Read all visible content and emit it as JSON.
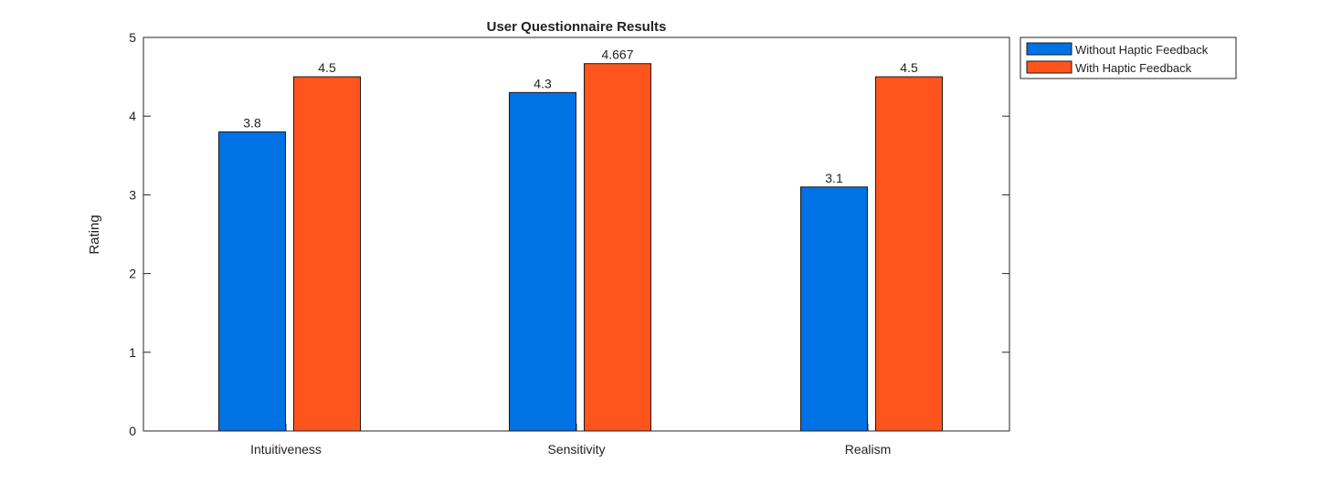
{
  "chart_data": {
    "type": "bar",
    "title": "User Questionnaire Results",
    "xlabel": "",
    "ylabel": "Rating",
    "ylim": [
      0,
      5
    ],
    "yticks": [
      0,
      1,
      2,
      3,
      4,
      5
    ],
    "categories": [
      "Intuitiveness",
      "Sensitivity",
      "Realism"
    ],
    "series": [
      {
        "name": "Without Haptic Feedback",
        "color": "#0072E3",
        "values": [
          3.8,
          4.3,
          3.1
        ],
        "labels": [
          "3.8",
          "4.3",
          "3.1"
        ]
      },
      {
        "name": "With Haptic Feedback",
        "color": "#FF541C",
        "values": [
          4.5,
          4.667,
          4.5
        ],
        "labels": [
          "4.5",
          "4.667",
          "4.5"
        ]
      }
    ],
    "legend": "top-right-outside",
    "grid": false
  }
}
